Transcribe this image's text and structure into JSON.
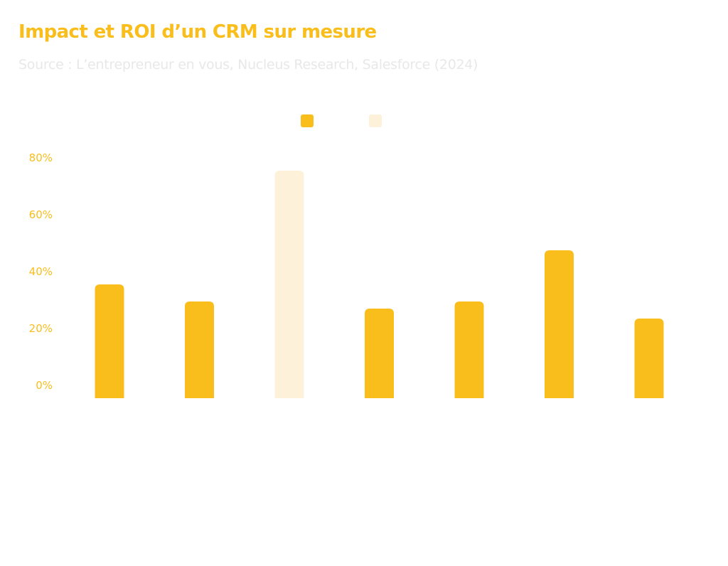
{
  "colors": {
    "primary": "#f9bd1c",
    "secondary": "#fdf2d9",
    "subtitle": "#e8e8e8"
  },
  "chart_data": {
    "type": "bar",
    "title": "Impact et ROI d’un CRM sur mesure",
    "subtitle": "Source : L’entrepreneur en vous, Nucleus Research, Salesforce (2024)",
    "ylim": [
      0,
      80
    ],
    "yticks": [
      0,
      20,
      40,
      60,
      80
    ],
    "ytick_format": "%",
    "grid": false,
    "legend": {
      "position": "top-center",
      "entries": [
        {
          "name": "",
          "color": "#f9bd1c"
        },
        {
          "name": "",
          "color": "#fdf2d9"
        }
      ]
    },
    "bars": [
      {
        "value": 40,
        "series": 0
      },
      {
        "value": 34,
        "series": 0
      },
      {
        "value": 80,
        "series": 1
      },
      {
        "value": 31.5,
        "series": 0
      },
      {
        "value": 34,
        "series": 0
      },
      {
        "value": 52,
        "series": 0
      },
      {
        "value": 28,
        "series": 0
      }
    ]
  }
}
